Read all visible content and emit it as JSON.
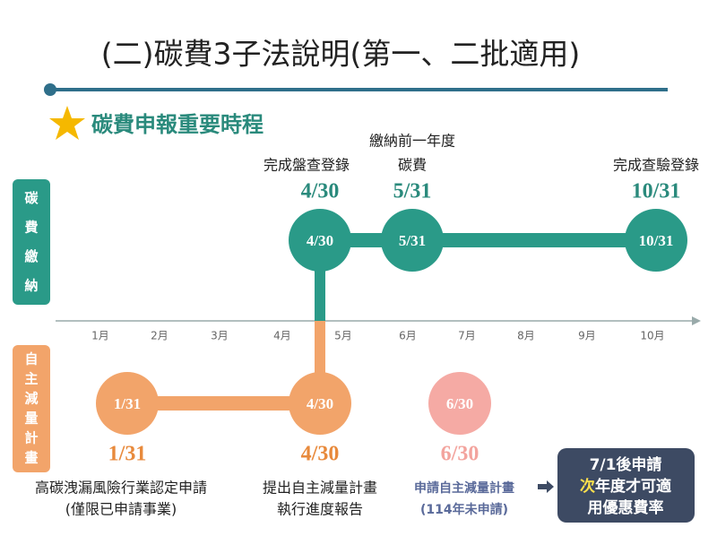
{
  "header": {
    "title": "(二)碳費3子法說明(第一、二批適用)",
    "subtitle": "碳費申報重要時程"
  },
  "rows": {
    "top": "碳費繳納",
    "bottom": "自主減量計畫"
  },
  "months": [
    "1月",
    "2月",
    "3月",
    "4月",
    "5月",
    "6月",
    "7月",
    "8月",
    "9月",
    "10月"
  ],
  "top_events": [
    {
      "lines": [
        "完成盤查登錄"
      ],
      "date": "4/30",
      "node": "4/30"
    },
    {
      "lines": [
        "繳納前一年度",
        "碳費"
      ],
      "date": "5/31",
      "node": "5/31"
    },
    {
      "lines": [
        "完成查驗登錄"
      ],
      "date": "10/31",
      "node": "10/31"
    }
  ],
  "bottom_events": [
    {
      "node": "1/31",
      "date": "1/31",
      "lines": [
        "高碳洩漏風險行業認定申請",
        "(僅限已申請事業)"
      ]
    },
    {
      "node": "4/30",
      "date": "4/30",
      "lines": [
        "提出自主減量計畫",
        "執行進度報告"
      ]
    },
    {
      "node": "6/30",
      "date": "6/30",
      "lines": [
        "申請自主減量計畫",
        "(114年未申請)"
      ]
    }
  ],
  "note": {
    "line1": "7/1後申請",
    "highlight": "次",
    "line2_rest": "年度才可適",
    "line3": "用優惠費率"
  }
}
